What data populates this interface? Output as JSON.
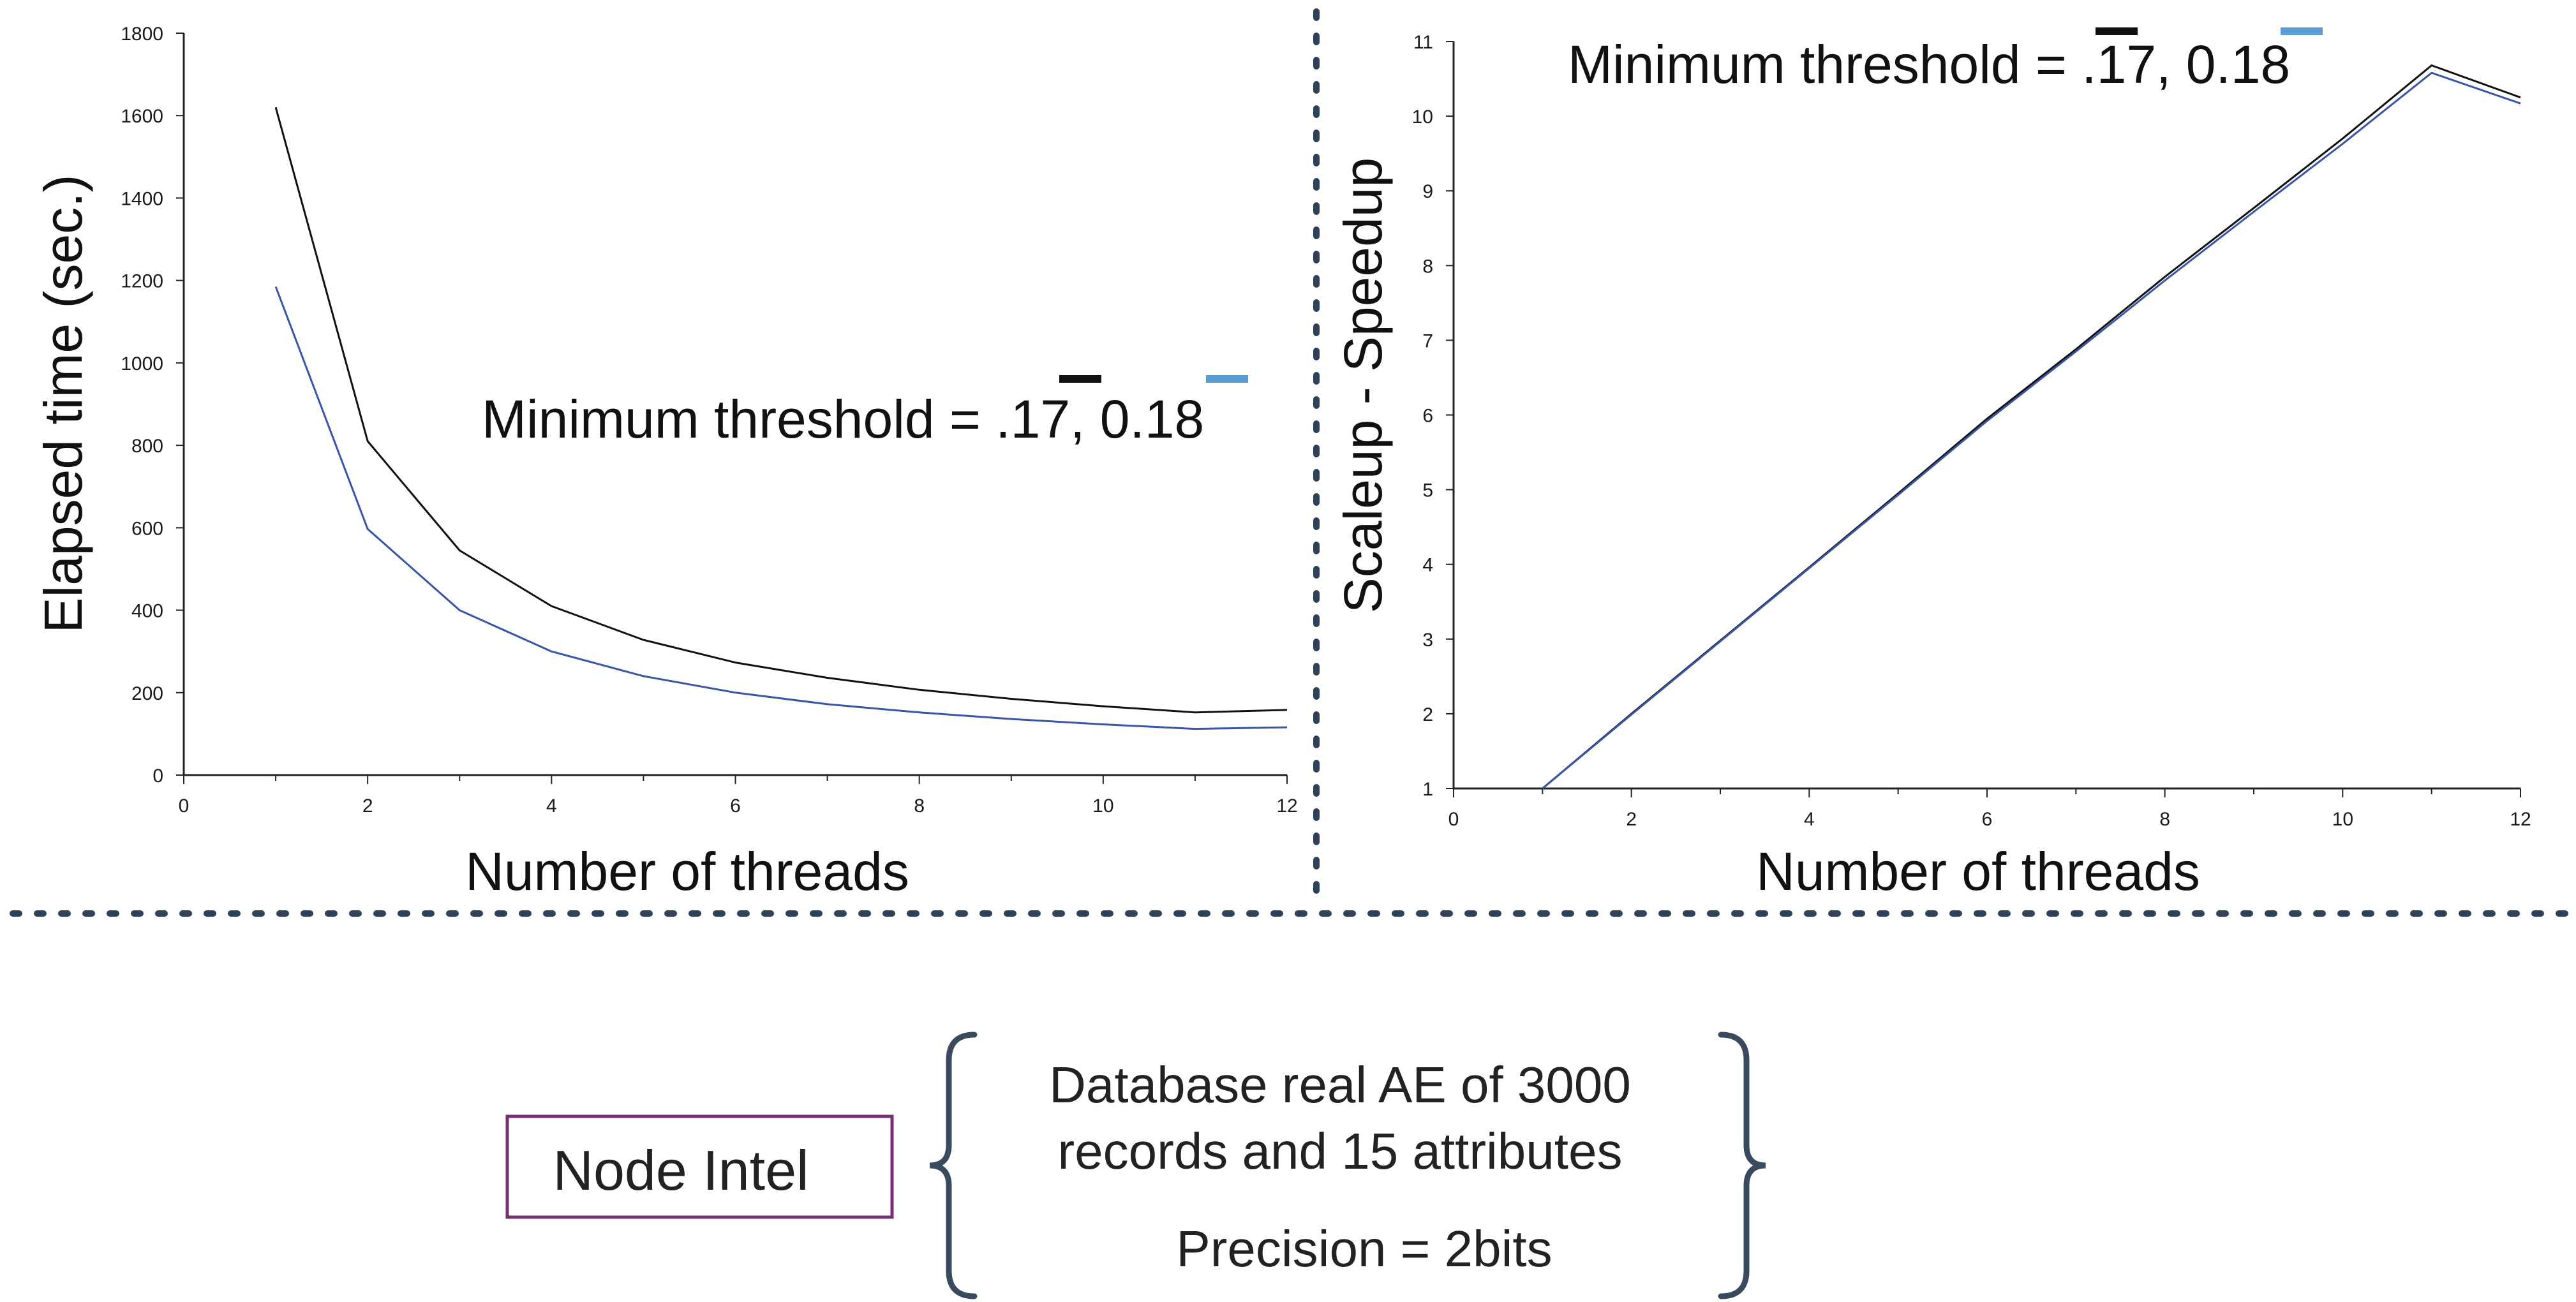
{
  "colors": {
    "series_black": "#111111",
    "series_blue": "#3a55a8",
    "legend_blue": "#5b9bd5",
    "divider": "#2f4157",
    "box_border": "#7a2e6e",
    "brace": "#3a4a5e"
  },
  "chart_data": [
    {
      "type": "line",
      "title": "",
      "xlabel": "Number of threads",
      "ylabel": "Elapsed time (sec.)",
      "xlim": [
        0,
        12
      ],
      "ylim": [
        0,
        1800
      ],
      "xticks": [
        0,
        2,
        4,
        6,
        8,
        10,
        12
      ],
      "yticks": [
        0,
        200,
        400,
        600,
        800,
        1000,
        1200,
        1400,
        1600,
        1800
      ],
      "grid": false,
      "annotation": {
        "prefix": "Minimum threshold = .",
        "value_a": "17",
        "sep": ", ",
        "value_b": "0.18"
      },
      "series": [
        {
          "color": "#111111",
          "x": [
            1,
            2,
            3,
            4,
            5,
            6,
            7,
            8,
            9,
            10,
            11,
            12
          ],
          "y": [
            1620,
            810,
            545,
            410,
            328,
            273,
            236,
            207,
            185,
            167,
            152,
            158
          ]
        },
        {
          "color": "#3a55a8",
          "x": [
            1,
            2,
            3,
            4,
            5,
            6,
            7,
            8,
            9,
            10,
            11,
            12
          ],
          "y": [
            1185,
            597,
            400,
            300,
            240,
            200,
            172,
            152,
            136,
            123,
            112,
            116
          ]
        }
      ]
    },
    {
      "type": "line",
      "title": "",
      "xlabel": "Number of threads",
      "ylabel": "Scaleup - Speedup",
      "xlim": [
        0,
        12
      ],
      "ylim": [
        1,
        11
      ],
      "xticks": [
        0,
        2,
        4,
        6,
        8,
        10,
        12
      ],
      "yticks": [
        1,
        2,
        3,
        4,
        5,
        6,
        7,
        8,
        9,
        10,
        11
      ],
      "grid": false,
      "annotation": {
        "prefix": "Minimum threshold = .",
        "value_a": "17",
        "sep": ", ",
        "value_b": "0.18"
      },
      "series": [
        {
          "color": "#111111",
          "x": [
            1,
            2,
            3,
            4,
            5,
            6,
            7,
            8,
            9,
            10,
            11,
            12
          ],
          "y": [
            1.0,
            2.0,
            2.98,
            3.96,
            4.95,
            5.95,
            6.88,
            7.85,
            8.77,
            9.7,
            10.68,
            10.25
          ]
        },
        {
          "color": "#3a55a8",
          "x": [
            1,
            2,
            3,
            4,
            5,
            6,
            7,
            8,
            9,
            10,
            11,
            12
          ],
          "y": [
            1.0,
            1.99,
            2.97,
            3.95,
            4.93,
            5.92,
            6.85,
            7.8,
            8.72,
            9.63,
            10.58,
            10.17
          ]
        }
      ]
    }
  ],
  "bottom": {
    "node_label": "Node Intel",
    "brace_lines": [
      "Database real AE of 3000",
      "records and 15 attributes",
      "Precision = 2bits"
    ]
  }
}
